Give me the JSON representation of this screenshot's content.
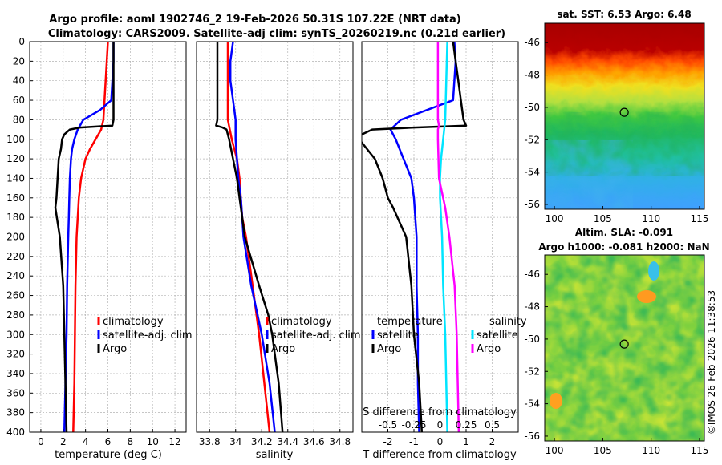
{
  "header": {
    "title_line1": "Argo profile: aoml 1902746_2 19-Feb-2026 50.31S 107.22E (NRT data)",
    "title_line2": "Climatology: CARS2009. Satellite-adj clim: synTS_20260219.nc (0.21d earlier)"
  },
  "credit": "©IMOS 26-Feb-2026 11:38:53",
  "colors": {
    "climatology": "#ff0000",
    "satellite": "#0000ff",
    "argo": "#000000",
    "salinity_satellite": "#00e5ff",
    "salinity_argo": "#ff00ff",
    "grid": "#b4b4b4"
  },
  "chart_data": [
    {
      "id": "temperature",
      "type": "line",
      "xlabel": "temperature (deg C)",
      "xlim": [
        -1,
        13
      ],
      "xticks": [
        0,
        2,
        4,
        6,
        8,
        10,
        12
      ],
      "xtick_labels": [
        "0",
        "2",
        "4",
        "6",
        "8",
        "10",
        "12"
      ],
      "ylim": [
        0,
        400
      ],
      "yticks": [
        0,
        20,
        40,
        60,
        80,
        100,
        120,
        140,
        160,
        180,
        200,
        220,
        240,
        260,
        280,
        300,
        320,
        340,
        360,
        380,
        400
      ],
      "ytick_labels": [
        "0",
        "20",
        "40",
        "60",
        "80",
        "100",
        "120",
        "140",
        "160",
        "180",
        "200",
        "220",
        "240",
        "260",
        "280",
        "300",
        "320",
        "340",
        "360",
        "380",
        "400"
      ],
      "legend": [
        "climatology",
        "satellite-adj. clim",
        "Argo"
      ],
      "series": [
        {
          "name": "climatology",
          "color": "#ff0000",
          "width": 2.5,
          "depth": [
            0,
            20,
            40,
            60,
            80,
            90,
            100,
            110,
            120,
            140,
            160,
            180,
            200,
            250,
            300,
            350,
            400
          ],
          "values": [
            6.0,
            5.9,
            5.8,
            5.7,
            5.6,
            5.4,
            4.9,
            4.4,
            4.0,
            3.6,
            3.4,
            3.3,
            3.2,
            3.1,
            3.05,
            3.0,
            2.9
          ]
        },
        {
          "name": "satellite-adj. clim",
          "color": "#0000ff",
          "width": 2.5,
          "depth": [
            0,
            20,
            40,
            60,
            70,
            80,
            90,
            100,
            110,
            120,
            140,
            160,
            180,
            200,
            250,
            300,
            350,
            400
          ],
          "values": [
            6.5,
            6.5,
            6.4,
            6.3,
            5.3,
            3.8,
            3.3,
            3.0,
            2.8,
            2.7,
            2.6,
            2.55,
            2.5,
            2.45,
            2.35,
            2.3,
            2.2,
            2.1
          ]
        },
        {
          "name": "Argo",
          "color": "#000000",
          "width": 2.5,
          "depth": [
            0,
            20,
            40,
            60,
            80,
            86,
            88,
            90,
            95,
            100,
            110,
            120,
            140,
            160,
            170,
            200,
            250,
            300,
            350,
            400
          ],
          "values": [
            6.5,
            6.5,
            6.5,
            6.5,
            6.5,
            6.4,
            3.5,
            2.6,
            2.1,
            1.9,
            1.8,
            1.6,
            1.5,
            1.4,
            1.3,
            1.7,
            2.0,
            2.1,
            2.2,
            2.3
          ]
        }
      ]
    },
    {
      "id": "salinity",
      "type": "line",
      "xlabel": "salinity",
      "xlim": [
        33.7,
        34.9
      ],
      "xticks": [
        33.8,
        34,
        34.2,
        34.4,
        34.6,
        34.8
      ],
      "xtick_labels": [
        "33.8",
        "34",
        "34.2",
        "34.4",
        "34.6",
        "34.8"
      ],
      "ylim": [
        0,
        400
      ],
      "legend": [
        "climatology",
        "satellite-adj. clim",
        "Argo"
      ],
      "series": [
        {
          "name": "climatology",
          "color": "#ff0000",
          "width": 2.5,
          "depth": [
            0,
            20,
            40,
            60,
            80,
            100,
            120,
            140,
            160,
            180,
            200,
            250,
            300,
            350,
            400
          ],
          "values": [
            33.94,
            33.94,
            33.94,
            33.94,
            33.94,
            33.97,
            34.01,
            34.03,
            34.04,
            34.05,
            34.08,
            34.13,
            34.18,
            34.22,
            34.26
          ]
        },
        {
          "name": "satellite-adj. clim",
          "color": "#0000ff",
          "width": 2.5,
          "depth": [
            0,
            20,
            40,
            60,
            80,
            90,
            100,
            120,
            140,
            160,
            180,
            200,
            250,
            300,
            350,
            400
          ],
          "values": [
            33.98,
            33.96,
            33.96,
            33.98,
            34.0,
            34.0,
            34.0,
            34.01,
            34.02,
            34.04,
            34.05,
            34.06,
            34.12,
            34.2,
            34.26,
            34.3
          ]
        },
        {
          "name": "Argo",
          "color": "#000000",
          "width": 2.5,
          "depth": [
            0,
            20,
            40,
            60,
            80,
            86,
            88,
            90,
            100,
            120,
            140,
            160,
            180,
            200,
            250,
            280,
            300,
            350,
            400
          ],
          "values": [
            33.86,
            33.86,
            33.86,
            33.86,
            33.86,
            33.85,
            33.9,
            33.93,
            33.95,
            33.98,
            34.01,
            34.03,
            34.05,
            34.07,
            34.18,
            34.25,
            34.28,
            34.33,
            34.36
          ]
        }
      ]
    },
    {
      "id": "difference",
      "type": "line",
      "xlabel": "T difference from climatology",
      "xlim": [
        -3,
        3
      ],
      "xticks": [
        -2,
        -1,
        0,
        1,
        2
      ],
      "xtick_labels": [
        "-2",
        "-1",
        "0",
        "1",
        "2"
      ],
      "top_xlabel": "S difference from climatology",
      "s_xlim": [
        -0.75,
        0.75
      ],
      "s_xticks": [
        -0.5,
        -0.25,
        0,
        0.25,
        0.5
      ],
      "s_xtick_labels": [
        "-0.5",
        "-0.25",
        "0",
        "0.25",
        "0.5"
      ],
      "ylim": [
        0,
        400
      ],
      "legend_left_title": "temperature",
      "legend_right_title": "salinity",
      "legend_left": [
        "satellite",
        "Argo"
      ],
      "legend_right": [
        "satellite",
        "Argo"
      ],
      "series": [
        {
          "name": "T satellite",
          "kind": "T",
          "color": "#0000ff",
          "width": 2.5,
          "depth": [
            0,
            20,
            40,
            60,
            70,
            80,
            90,
            100,
            120,
            140,
            160,
            200,
            250,
            300,
            350,
            400
          ],
          "values": [
            0.55,
            0.6,
            0.55,
            0.5,
            -0.5,
            -1.5,
            -1.9,
            -1.7,
            -1.4,
            -1.1,
            -1.0,
            -0.9,
            -0.9,
            -0.85,
            -0.85,
            -0.8
          ]
        },
        {
          "name": "T Argo",
          "kind": "T",
          "color": "#000000",
          "width": 2.5,
          "depth": [
            0,
            20,
            40,
            60,
            80,
            86,
            88,
            90,
            95,
            100,
            110,
            120,
            140,
            160,
            170,
            200,
            250,
            300,
            350,
            400
          ],
          "values": [
            0.5,
            0.6,
            0.7,
            0.8,
            0.9,
            1.0,
            -1.0,
            -2.6,
            -3.0,
            -3.1,
            -2.8,
            -2.5,
            -2.2,
            -2.0,
            -1.8,
            -1.3,
            -1.1,
            -1.0,
            -0.8,
            -0.7
          ]
        },
        {
          "name": "S satellite",
          "kind": "S",
          "color": "#00e5ff",
          "width": 2.5,
          "depth": [
            0,
            40,
            80,
            100,
            120,
            140,
            160,
            180,
            200,
            250,
            300,
            350,
            400
          ],
          "values": [
            0.07,
            0.06,
            0.05,
            0.03,
            0.01,
            0.0,
            0.0,
            0.01,
            0.02,
            0.03,
            0.05,
            0.06,
            0.07
          ]
        },
        {
          "name": "S Argo",
          "kind": "S",
          "color": "#ff00ff",
          "width": 2.5,
          "depth": [
            0,
            20,
            40,
            60,
            80,
            86,
            90,
            100,
            140,
            170,
            200,
            250,
            300,
            350,
            400
          ],
          "values": [
            -0.02,
            -0.02,
            -0.02,
            -0.02,
            -0.02,
            -0.01,
            -0.02,
            -0.02,
            -0.01,
            0.05,
            0.09,
            0.14,
            0.16,
            0.17,
            0.18
          ]
        }
      ]
    }
  ],
  "maps": [
    {
      "id": "sst-map",
      "title": "sat. SST: 6.53 Argo: 6.48",
      "xlim": [
        99,
        115.5
      ],
      "ylim": [
        -56.3,
        -44.8
      ],
      "xticks": [
        100,
        105,
        110,
        115
      ],
      "xtick_labels": [
        "100",
        "105",
        "110",
        "115"
      ],
      "yticks": [
        -46,
        -48,
        -50,
        -52,
        -54,
        -56
      ],
      "ytick_labels": [
        "-46",
        "-48",
        "-50",
        "-52",
        "-54",
        "-56"
      ],
      "marker": {
        "lon": 107.22,
        "lat": -50.31
      }
    },
    {
      "id": "sla-map",
      "title_line1": "Altim. SLA: -0.091",
      "title_line2": "Argo h1000: -0.081 h2000: NaN",
      "xlim": [
        99,
        115.5
      ],
      "ylim": [
        -56.3,
        -44.8
      ],
      "xticks": [
        100,
        105,
        110,
        115
      ],
      "xtick_labels": [
        "100",
        "105",
        "110",
        "115"
      ],
      "yticks": [
        -46,
        -48,
        -50,
        -52,
        -54,
        -56
      ],
      "ytick_labels": [
        "-46",
        "-48",
        "-50",
        "-52",
        "-54",
        "-56"
      ],
      "marker": {
        "lon": 107.22,
        "lat": -50.31
      }
    }
  ]
}
